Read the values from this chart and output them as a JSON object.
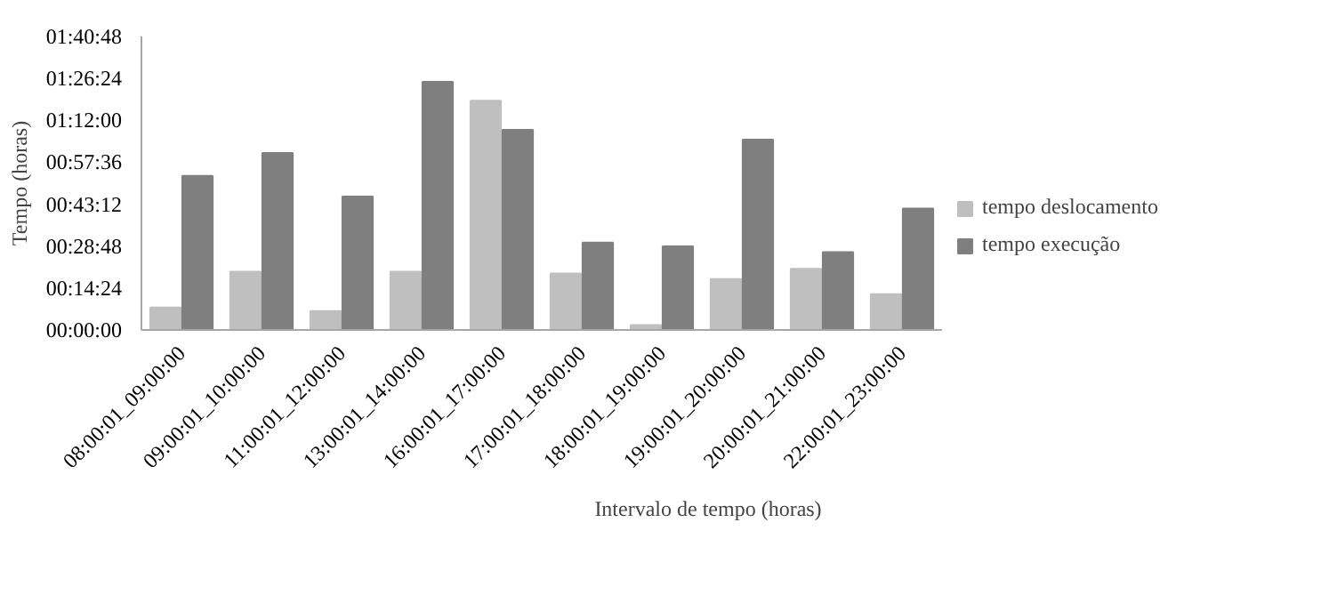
{
  "chart_data": {
    "type": "bar",
    "xlabel": "Intervalo de tempo  (horas)",
    "ylabel": "Tempo (horas)",
    "categories": [
      "08:00:01_09:00:00",
      "09:00:01_10:00:00",
      "11:00:01_12:00:00",
      "13:00:01_14:00:00",
      "16:00:01_17:00:00",
      "17:00:01_18:00:00",
      "18:00:01_19:00:00",
      "19:00:01_20:00:00",
      "20:00:01_21:00:00",
      "22:00:01_23:00:00"
    ],
    "series": [
      {
        "name": "tempo deslocamento",
        "color": "#bfbfbf",
        "values": [
          7.7,
          20.0,
          6.5,
          20.0,
          78.7,
          19.4,
          1.7,
          17.5,
          21.0,
          12.3
        ]
      },
      {
        "name": "tempo execução",
        "color": "#7f7f7f",
        "values": [
          52.9,
          60.8,
          45.8,
          85.2,
          68.7,
          30.0,
          28.7,
          65.4,
          26.7,
          41.7
        ]
      }
    ],
    "ylim": [
      0,
      100.8
    ],
    "yticks": [
      {
        "value": 0,
        "label": "00:00:00"
      },
      {
        "value": 14.4,
        "label": "00:14:24"
      },
      {
        "value": 28.8,
        "label": "00:28:48"
      },
      {
        "value": 43.2,
        "label": "00:43:12"
      },
      {
        "value": 57.6,
        "label": "00:57:36"
      },
      {
        "value": 72,
        "label": "01:12:00"
      },
      {
        "value": 86.4,
        "label": "01:26:24"
      },
      {
        "value": 100.8,
        "label": "01:40:48"
      }
    ],
    "grid": false,
    "legend": "right"
  }
}
